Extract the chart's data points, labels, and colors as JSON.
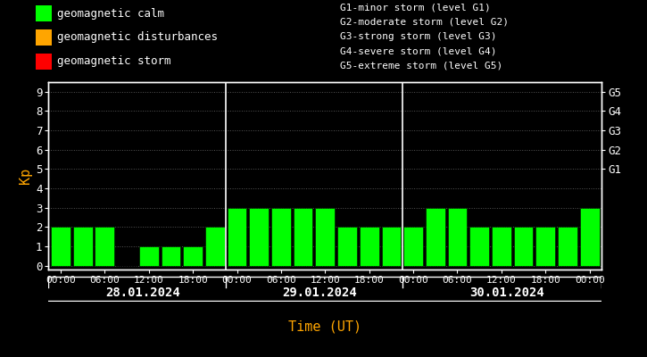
{
  "bg_color": "#000000",
  "bar_color_calm": "#00ff00",
  "bar_color_disturb": "#ffa500",
  "bar_color_storm": "#ff0000",
  "text_color": "#ffffff",
  "orange_color": "#ffa500",
  "grid_color": "#555555",
  "ylabel": "Kp",
  "xlabel": "Time (UT)",
  "legend_items": [
    {
      "label": "geomagnetic calm",
      "color": "#00ff00"
    },
    {
      "label": "geomagnetic disturbances",
      "color": "#ffa500"
    },
    {
      "label": "geomagnetic storm",
      "color": "#ff0000"
    }
  ],
  "storm_legend_lines": [
    "G1-minor storm (level G1)",
    "G2-moderate storm (level G2)",
    "G3-strong storm (level G3)",
    "G4-severe storm (level G4)",
    "G5-extreme storm (level G5)"
  ],
  "days": [
    "28.01.2024",
    "29.01.2024",
    "30.01.2024"
  ],
  "kp_day1": [
    2,
    2,
    2,
    0,
    1,
    1,
    1,
    2
  ],
  "kp_day2": [
    3,
    3,
    3,
    3,
    3,
    2,
    2,
    2
  ],
  "kp_day3": [
    2,
    3,
    3,
    2,
    2,
    2,
    2,
    2,
    3
  ],
  "yticks": [
    0,
    1,
    2,
    3,
    4,
    5,
    6,
    7,
    8,
    9
  ],
  "right_yticks": [
    5,
    6,
    7,
    8,
    9
  ],
  "right_yticklabels": [
    "G1",
    "G2",
    "G3",
    "G4",
    "G5"
  ],
  "xtick_labels": [
    "00:00",
    "06:00",
    "12:00",
    "18:00",
    "00:00",
    "06:00",
    "12:00",
    "18:00",
    "00:00",
    "06:00",
    "12:00",
    "18:00",
    "00:00"
  ],
  "xtick_positions": [
    0,
    2,
    4,
    6,
    8,
    10,
    12,
    14,
    16,
    18,
    20,
    22,
    24
  ],
  "sep1_x": 7.5,
  "sep2_x": 15.5,
  "xlim_min": -0.55,
  "xlim_max": 24.55,
  "ylim_min": -0.2,
  "ylim_max": 9.5,
  "day_centers": [
    3.75,
    11.75,
    20.25
  ],
  "figsize": [
    7.25,
    4.0
  ],
  "dpi": 100
}
